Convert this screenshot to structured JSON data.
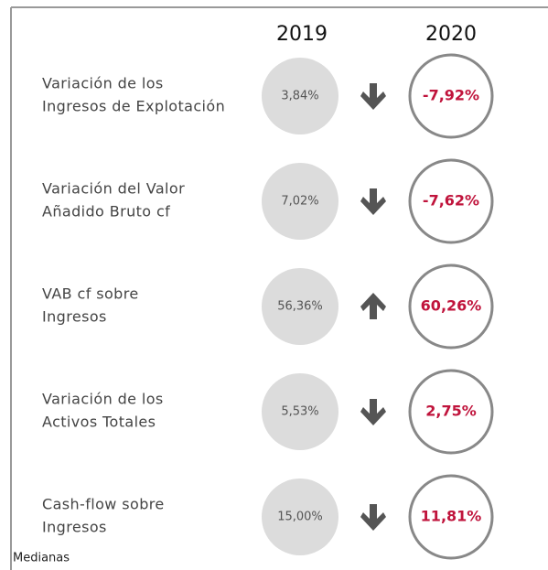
{
  "header": {
    "col1": "2019",
    "col2": "2020"
  },
  "rows": [
    {
      "label": [
        "Variación de los",
        "Ingresos de Explotación"
      ],
      "v2019": "3,84%",
      "v2020": "-7,92%",
      "arrow": "down"
    },
    {
      "label": [
        "Variación del Valor",
        "Añadido Bruto cf"
      ],
      "v2019": "7,02%",
      "v2020": "-7,62%",
      "arrow": "down"
    },
    {
      "label": [
        "VAB cf sobre",
        "Ingresos"
      ],
      "v2019": "56,36%",
      "v2020": "60,26%",
      "arrow": "up"
    },
    {
      "label": [
        "Variación de los",
        "Activos Totales"
      ],
      "v2019": "5,53%",
      "v2020": "2,75%",
      "arrow": "down"
    },
    {
      "label": [
        "Cash-flow sobre",
        "Ingresos"
      ],
      "v2019": "15,00%",
      "v2020": "11,81%",
      "arrow": "down"
    }
  ],
  "footnote": "Medianas"
}
